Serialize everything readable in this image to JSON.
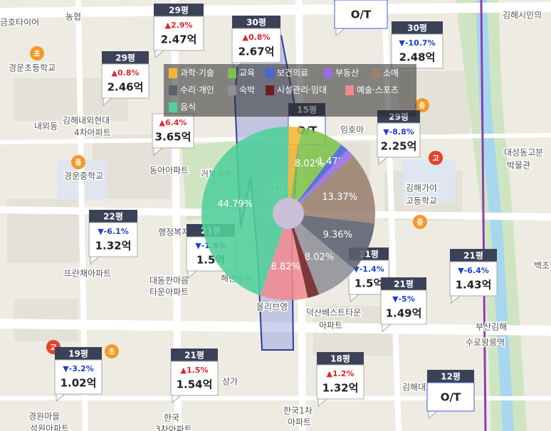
{
  "map_labels": [
    "금호타이어",
    "농협",
    "경운초등학교",
    "내외동",
    "김해내외현대",
    "4차아파트",
    "경운중학교",
    "동아아파트",
    "거북공원",
    "내외동",
    "행정복지",
    "대동한마음",
    "타운아파트",
    "뜨란채아파트",
    "해반빌딩",
    "올리브영",
    "덕산베스트타운",
    "아파트",
    "임호마",
    "김해가야",
    "고등학교",
    "대성동고분",
    "박물관",
    "김해시민의",
    "부산김해",
    "수로왕릉역",
    "백조",
    "경원마을",
    "성원아파트",
    "한국1차",
    "아파트",
    "한국",
    "3차아파트",
    "김해대",
    "상가"
  ],
  "poi_badges": [
    "초",
    "초",
    "중",
    "중",
    "중",
    "고",
    "고"
  ],
  "price_markers": [
    {
      "price": "O/T"
    },
    {
      "area": "29평",
      "change": "▲2.9%",
      "price": "2.47억"
    },
    {
      "area": "30평",
      "change": "▲0.8%",
      "price": "2.67억"
    },
    {
      "area": "30평",
      "change": "▼-10.7%",
      "price": "2.48억"
    },
    {
      "area": "29평",
      "change": "▲0.8%",
      "price": "2.46억"
    },
    {
      "change": "▲6.4%",
      "price": "3.65억"
    },
    {
      "area": "29평",
      "change": "▼-8.8%",
      "price": "2.25억"
    },
    {
      "area": "22평",
      "change": "▼-6.1%",
      "price": "1.32억"
    },
    {
      "area": "21평",
      "change": "▼-1.8%",
      "price": "1.5억"
    },
    {
      "area": "21평",
      "change": "▼-6.4%",
      "price": "1.43억"
    },
    {
      "area": "21평",
      "change": "▼-1.4%",
      "price": "1.5억"
    },
    {
      "area": "21평",
      "change": "▼-5%",
      "price": "1.49억"
    },
    {
      "area": "19평",
      "change": "▼-3.2%",
      "price": "1.02억"
    },
    {
      "area": "21평",
      "change": "▲1.5%",
      "price": "1.54억"
    },
    {
      "area": "18평",
      "change": "▲1.2%",
      "price": "1.32억"
    },
    {
      "area": "12평",
      "price": "O/T"
    },
    {
      "area": "15평",
      "price": "O/T"
    }
  ],
  "chart_data": {
    "type": "pie",
    "categories": [
      "과학·기술",
      "교육",
      "보건의료",
      "부동산",
      "소매",
      "수리·개인",
      "숙박",
      "시설관리·임대",
      "예술·스포츠",
      "음식"
    ],
    "values": [
      2.41,
      8.02,
      1.47,
      1.6,
      13.37,
      9.36,
      8.02,
      2.14,
      8.82,
      44.79
    ],
    "value_labels": [
      null,
      "8.02%",
      "1.47%",
      null,
      "13.37%",
      "9.36%",
      "8.02%",
      null,
      "8.82%",
      "44.79%"
    ],
    "colors": [
      "#f2b632",
      "#7cc24a",
      "#4a63d8",
      "#9a6ee0",
      "#9b8070",
      "#5d6070",
      "#8f9098",
      "#6e1c22",
      "#f08a8f",
      "#4fcf9a"
    ]
  }
}
